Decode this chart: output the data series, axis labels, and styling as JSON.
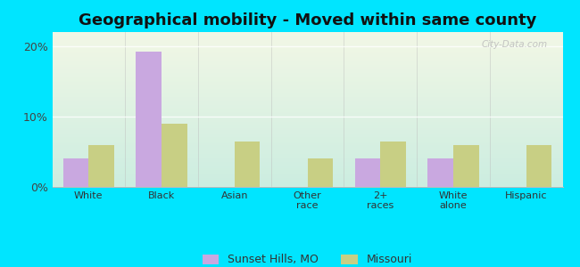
{
  "title": "Geographical mobility - Moved within same county",
  "categories": [
    "White",
    "Black",
    "Asian",
    "Other\nrace",
    "2+\nraces",
    "White\nalone",
    "Hispanic"
  ],
  "sunset_hills": [
    4.0,
    19.2,
    0.0,
    0.0,
    4.0,
    4.0,
    0.0
  ],
  "missouri": [
    6.0,
    9.0,
    6.5,
    4.0,
    6.5,
    6.0,
    6.0
  ],
  "sunset_color": "#c9a8e0",
  "missouri_color": "#c8cf84",
  "bg_color_outer": "#00e5ff",
  "ylim": [
    0,
    22
  ],
  "yticks": [
    0,
    10,
    20
  ],
  "ytick_labels": [
    "0%",
    "10%",
    "20%"
  ],
  "legend_labels": [
    "Sunset Hills, MO",
    "Missouri"
  ],
  "bar_width": 0.35,
  "title_fontsize": 13,
  "watermark": "City-Data.com"
}
